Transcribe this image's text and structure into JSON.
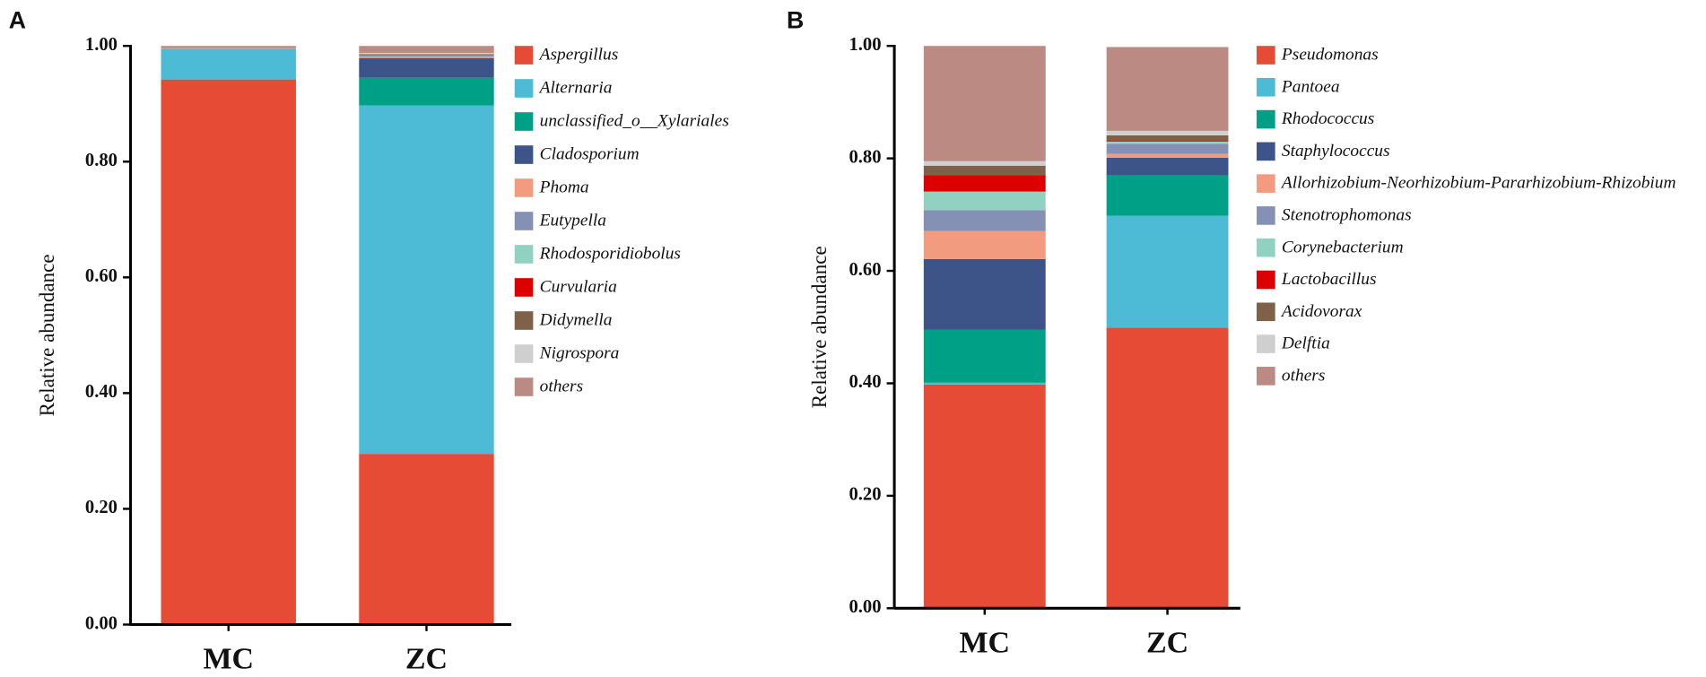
{
  "chart_data": [
    {
      "type": "stacked_bar",
      "panel": "A",
      "ylabel": "Relative abundance",
      "categories": [
        "MC",
        "ZC"
      ],
      "ylim": [
        0,
        1
      ],
      "yticks": [
        {
          "value": 0,
          "label": "0.00"
        },
        {
          "value": 0.2,
          "label": "0.20"
        },
        {
          "value": 0.4,
          "label": "0.40"
        },
        {
          "value": 0.6,
          "label": "0.60"
        },
        {
          "value": 0.8,
          "label": "0.80"
        },
        {
          "value": 1,
          "label": "1.00"
        }
      ],
      "series": [
        {
          "name": "Aspergillus",
          "color": "#e64b35",
          "values": [
            0.942,
            0.295
          ]
        },
        {
          "name": "Alternaria",
          "color": "#4dbbd5",
          "values": [
            0.053,
            0.602
          ]
        },
        {
          "name": "unclassified_o__Xylariales",
          "color": "#00a087",
          "values": [
            0,
            0.048
          ]
        },
        {
          "name": "Cladosporium",
          "color": "#3c5488",
          "values": [
            0,
            0.034
          ]
        },
        {
          "name": "Phoma",
          "color": "#f39b7f",
          "values": [
            0.001,
            0.002
          ]
        },
        {
          "name": "Eutypella",
          "color": "#8491b4",
          "values": [
            0,
            0.002
          ]
        },
        {
          "name": "Rhodosporidiobolus",
          "color": "#91d1c2",
          "values": [
            0,
            0.001
          ]
        },
        {
          "name": "Curvularia",
          "color": "#dc0000",
          "values": [
            0,
            0.001
          ]
        },
        {
          "name": "Didymella",
          "color": "#7e6148",
          "values": [
            0,
            0.001
          ]
        },
        {
          "name": "Nigrospora",
          "color": "#cfcfcf",
          "values": [
            0,
            0.002
          ]
        },
        {
          "name": "others",
          "color": "#bb8a82",
          "values": [
            0.004,
            0.012
          ]
        }
      ]
    },
    {
      "type": "stacked_bar",
      "panel": "B",
      "ylabel": "Relative abundance",
      "categories": [
        "MC",
        "ZC"
      ],
      "ylim": [
        0,
        1
      ],
      "yticks": [
        {
          "value": 0,
          "label": "0.00"
        },
        {
          "value": 0.2,
          "label": "0.20"
        },
        {
          "value": 0.4,
          "label": "0.40"
        },
        {
          "value": 0.6,
          "label": "0.60"
        },
        {
          "value": 0.8,
          "label": "0.80"
        },
        {
          "value": 1,
          "label": "1.00"
        }
      ],
      "series": [
        {
          "name": "Pseudomonas",
          "color": "#e64b35",
          "values": [
            0.398,
            0.499
          ]
        },
        {
          "name": "Pantoea",
          "color": "#4dbbd5",
          "values": [
            0.003,
            0.199
          ]
        },
        {
          "name": "Rhodococcus",
          "color": "#00a087",
          "values": [
            0.094,
            0.072
          ]
        },
        {
          "name": "Staphylococcus",
          "color": "#3c5488",
          "values": [
            0.126,
            0.031
          ]
        },
        {
          "name": "Allorhizobium-Neorhizobium-Pararhizobium-Rhizobium",
          "color": "#f39b7f",
          "values": [
            0.05,
            0.007
          ]
        },
        {
          "name": "Stenotrophomonas",
          "color": "#8491b4",
          "values": [
            0.037,
            0.018
          ]
        },
        {
          "name": "Corynebacterium",
          "color": "#91d1c2",
          "values": [
            0.033,
            0.004
          ]
        },
        {
          "name": "Lactobacillus",
          "color": "#dc0000",
          "values": [
            0.029,
            0.002
          ]
        },
        {
          "name": "Acidovorax",
          "color": "#7e6148",
          "values": [
            0.017,
            0.009
          ]
        },
        {
          "name": "Delftia",
          "color": "#cfcfcf",
          "values": [
            0.008,
            0.008
          ]
        },
        {
          "name": "others",
          "color": "#bb8a82",
          "values": [
            0.205,
            0.149
          ]
        }
      ]
    }
  ]
}
